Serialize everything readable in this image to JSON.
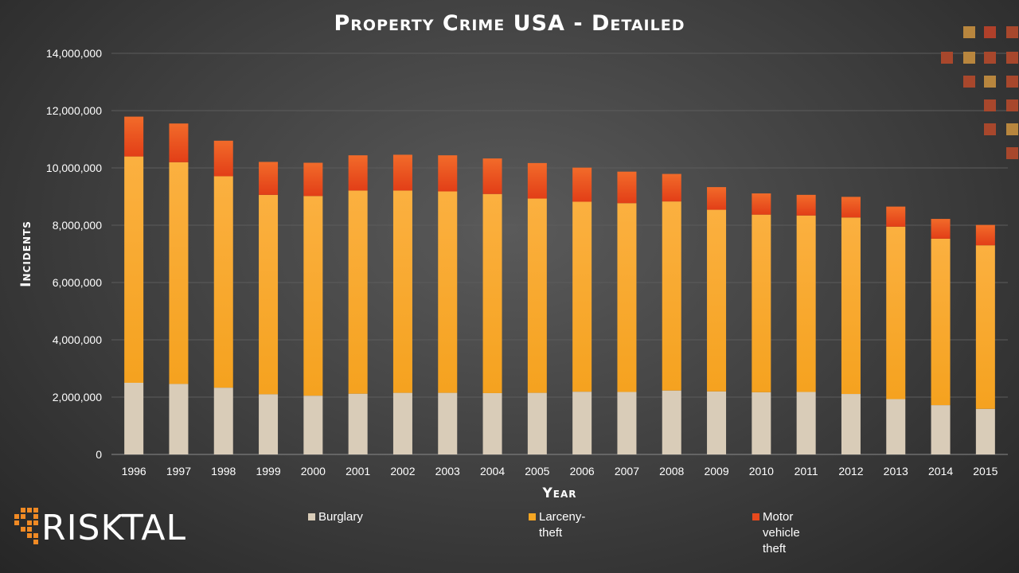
{
  "chart_data": {
    "type": "bar",
    "stacked": true,
    "title": "Property Crime USA - Detailed",
    "xlabel": "Year",
    "ylabel": "Incidents",
    "ylim": [
      0,
      14000000
    ],
    "yticks": [
      "0",
      "2,000,000",
      "4,000,000",
      "6,000,000",
      "8,000,000",
      "10,000,000",
      "12,000,000",
      "14,000,000"
    ],
    "grid": true,
    "legend_position": "bottom",
    "categories": [
      "1996",
      "1997",
      "1998",
      "1999",
      "2000",
      "2001",
      "2002",
      "2003",
      "2004",
      "2005",
      "2006",
      "2007",
      "2008",
      "2009",
      "2010",
      "2011",
      "2012",
      "2013",
      "2014",
      "2015"
    ],
    "series": [
      {
        "name": "Burglary",
        "color": "#D9CCB8",
        "values": [
          2500000,
          2460000,
          2330000,
          2100000,
          2050000,
          2120000,
          2150000,
          2150000,
          2140000,
          2150000,
          2190000,
          2180000,
          2230000,
          2200000,
          2170000,
          2180000,
          2110000,
          1930000,
          1720000,
          1590000
        ]
      },
      {
        "name": "Larceny-theft",
        "color": "#F5A623",
        "values": [
          7900000,
          7740000,
          7380000,
          6960000,
          6970000,
          7090000,
          7060000,
          7030000,
          6950000,
          6780000,
          6630000,
          6590000,
          6600000,
          6340000,
          6200000,
          6160000,
          6160000,
          6020000,
          5810000,
          5710000
        ]
      },
      {
        "name": "Motor vehicle theft",
        "color": "#E8491D",
        "values": [
          1390000,
          1350000,
          1240000,
          1150000,
          1160000,
          1230000,
          1250000,
          1260000,
          1240000,
          1240000,
          1190000,
          1100000,
          960000,
          790000,
          740000,
          720000,
          720000,
          700000,
          690000,
          710000
        ]
      }
    ]
  },
  "legend": {
    "items": [
      {
        "label": "Burglary",
        "color": "#D9CCB8"
      },
      {
        "label": "Larceny-theft",
        "color": "#F5A623"
      },
      {
        "label": "Motor vehicle theft",
        "color": "#E8491D"
      }
    ]
  },
  "logo": {
    "text": "RISKTAL",
    "accent_color": "#F08A24"
  }
}
